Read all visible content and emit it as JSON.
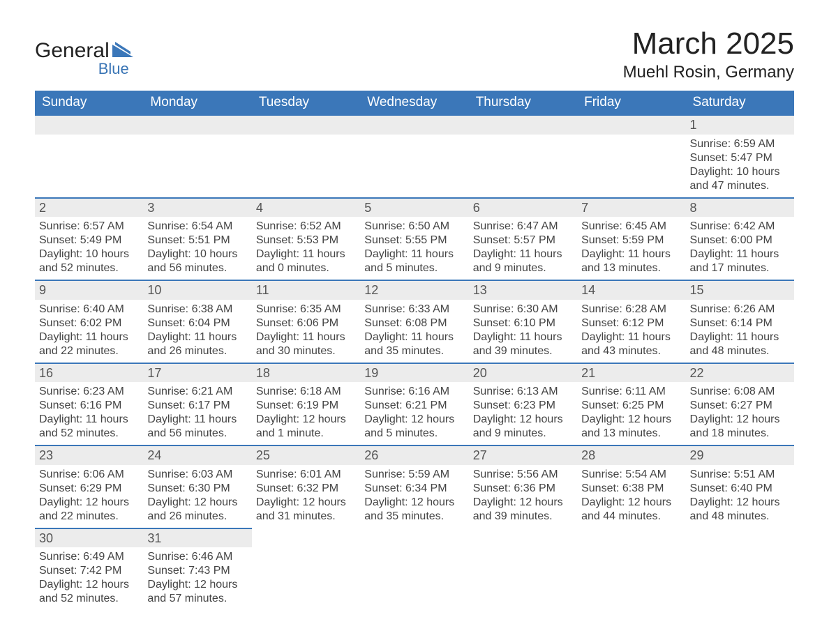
{
  "brand": {
    "name": "General",
    "sub": "Blue"
  },
  "title": {
    "month": "March 2025",
    "location": "Muehl Rosin, Germany"
  },
  "colors": {
    "header_bg": "#3b77b9",
    "band_bg": "#ececec",
    "text": "#333333",
    "accent": "#3b77b9"
  },
  "dayNames": [
    "Sunday",
    "Monday",
    "Tuesday",
    "Wednesday",
    "Thursday",
    "Friday",
    "Saturday"
  ],
  "weeks": [
    [
      {
        "empty": true
      },
      {
        "empty": true
      },
      {
        "empty": true
      },
      {
        "empty": true
      },
      {
        "empty": true
      },
      {
        "empty": true
      },
      {
        "day": "1",
        "sunrise": "Sunrise: 6:59 AM",
        "sunset": "Sunset: 5:47 PM",
        "dl1": "Daylight: 10 hours",
        "dl2": "and 47 minutes."
      }
    ],
    [
      {
        "day": "2",
        "sunrise": "Sunrise: 6:57 AM",
        "sunset": "Sunset: 5:49 PM",
        "dl1": "Daylight: 10 hours",
        "dl2": "and 52 minutes."
      },
      {
        "day": "3",
        "sunrise": "Sunrise: 6:54 AM",
        "sunset": "Sunset: 5:51 PM",
        "dl1": "Daylight: 10 hours",
        "dl2": "and 56 minutes."
      },
      {
        "day": "4",
        "sunrise": "Sunrise: 6:52 AM",
        "sunset": "Sunset: 5:53 PM",
        "dl1": "Daylight: 11 hours",
        "dl2": "and 0 minutes."
      },
      {
        "day": "5",
        "sunrise": "Sunrise: 6:50 AM",
        "sunset": "Sunset: 5:55 PM",
        "dl1": "Daylight: 11 hours",
        "dl2": "and 5 minutes."
      },
      {
        "day": "6",
        "sunrise": "Sunrise: 6:47 AM",
        "sunset": "Sunset: 5:57 PM",
        "dl1": "Daylight: 11 hours",
        "dl2": "and 9 minutes."
      },
      {
        "day": "7",
        "sunrise": "Sunrise: 6:45 AM",
        "sunset": "Sunset: 5:59 PM",
        "dl1": "Daylight: 11 hours",
        "dl2": "and 13 minutes."
      },
      {
        "day": "8",
        "sunrise": "Sunrise: 6:42 AM",
        "sunset": "Sunset: 6:00 PM",
        "dl1": "Daylight: 11 hours",
        "dl2": "and 17 minutes."
      }
    ],
    [
      {
        "day": "9",
        "sunrise": "Sunrise: 6:40 AM",
        "sunset": "Sunset: 6:02 PM",
        "dl1": "Daylight: 11 hours",
        "dl2": "and 22 minutes."
      },
      {
        "day": "10",
        "sunrise": "Sunrise: 6:38 AM",
        "sunset": "Sunset: 6:04 PM",
        "dl1": "Daylight: 11 hours",
        "dl2": "and 26 minutes."
      },
      {
        "day": "11",
        "sunrise": "Sunrise: 6:35 AM",
        "sunset": "Sunset: 6:06 PM",
        "dl1": "Daylight: 11 hours",
        "dl2": "and 30 minutes."
      },
      {
        "day": "12",
        "sunrise": "Sunrise: 6:33 AM",
        "sunset": "Sunset: 6:08 PM",
        "dl1": "Daylight: 11 hours",
        "dl2": "and 35 minutes."
      },
      {
        "day": "13",
        "sunrise": "Sunrise: 6:30 AM",
        "sunset": "Sunset: 6:10 PM",
        "dl1": "Daylight: 11 hours",
        "dl2": "and 39 minutes."
      },
      {
        "day": "14",
        "sunrise": "Sunrise: 6:28 AM",
        "sunset": "Sunset: 6:12 PM",
        "dl1": "Daylight: 11 hours",
        "dl2": "and 43 minutes."
      },
      {
        "day": "15",
        "sunrise": "Sunrise: 6:26 AM",
        "sunset": "Sunset: 6:14 PM",
        "dl1": "Daylight: 11 hours",
        "dl2": "and 48 minutes."
      }
    ],
    [
      {
        "day": "16",
        "sunrise": "Sunrise: 6:23 AM",
        "sunset": "Sunset: 6:16 PM",
        "dl1": "Daylight: 11 hours",
        "dl2": "and 52 minutes."
      },
      {
        "day": "17",
        "sunrise": "Sunrise: 6:21 AM",
        "sunset": "Sunset: 6:17 PM",
        "dl1": "Daylight: 11 hours",
        "dl2": "and 56 minutes."
      },
      {
        "day": "18",
        "sunrise": "Sunrise: 6:18 AM",
        "sunset": "Sunset: 6:19 PM",
        "dl1": "Daylight: 12 hours",
        "dl2": "and 1 minute."
      },
      {
        "day": "19",
        "sunrise": "Sunrise: 6:16 AM",
        "sunset": "Sunset: 6:21 PM",
        "dl1": "Daylight: 12 hours",
        "dl2": "and 5 minutes."
      },
      {
        "day": "20",
        "sunrise": "Sunrise: 6:13 AM",
        "sunset": "Sunset: 6:23 PM",
        "dl1": "Daylight: 12 hours",
        "dl2": "and 9 minutes."
      },
      {
        "day": "21",
        "sunrise": "Sunrise: 6:11 AM",
        "sunset": "Sunset: 6:25 PM",
        "dl1": "Daylight: 12 hours",
        "dl2": "and 13 minutes."
      },
      {
        "day": "22",
        "sunrise": "Sunrise: 6:08 AM",
        "sunset": "Sunset: 6:27 PM",
        "dl1": "Daylight: 12 hours",
        "dl2": "and 18 minutes."
      }
    ],
    [
      {
        "day": "23",
        "sunrise": "Sunrise: 6:06 AM",
        "sunset": "Sunset: 6:29 PM",
        "dl1": "Daylight: 12 hours",
        "dl2": "and 22 minutes."
      },
      {
        "day": "24",
        "sunrise": "Sunrise: 6:03 AM",
        "sunset": "Sunset: 6:30 PM",
        "dl1": "Daylight: 12 hours",
        "dl2": "and 26 minutes."
      },
      {
        "day": "25",
        "sunrise": "Sunrise: 6:01 AM",
        "sunset": "Sunset: 6:32 PM",
        "dl1": "Daylight: 12 hours",
        "dl2": "and 31 minutes."
      },
      {
        "day": "26",
        "sunrise": "Sunrise: 5:59 AM",
        "sunset": "Sunset: 6:34 PM",
        "dl1": "Daylight: 12 hours",
        "dl2": "and 35 minutes."
      },
      {
        "day": "27",
        "sunrise": "Sunrise: 5:56 AM",
        "sunset": "Sunset: 6:36 PM",
        "dl1": "Daylight: 12 hours",
        "dl2": "and 39 minutes."
      },
      {
        "day": "28",
        "sunrise": "Sunrise: 5:54 AM",
        "sunset": "Sunset: 6:38 PM",
        "dl1": "Daylight: 12 hours",
        "dl2": "and 44 minutes."
      },
      {
        "day": "29",
        "sunrise": "Sunrise: 5:51 AM",
        "sunset": "Sunset: 6:40 PM",
        "dl1": "Daylight: 12 hours",
        "dl2": "and 48 minutes."
      }
    ],
    [
      {
        "day": "30",
        "sunrise": "Sunrise: 6:49 AM",
        "sunset": "Sunset: 7:42 PM",
        "dl1": "Daylight: 12 hours",
        "dl2": "and 52 minutes."
      },
      {
        "day": "31",
        "sunrise": "Sunrise: 6:46 AM",
        "sunset": "Sunset: 7:43 PM",
        "dl1": "Daylight: 12 hours",
        "dl2": "and 57 minutes."
      },
      {
        "empty": true
      },
      {
        "empty": true
      },
      {
        "empty": true
      },
      {
        "empty": true
      },
      {
        "empty": true
      }
    ]
  ]
}
